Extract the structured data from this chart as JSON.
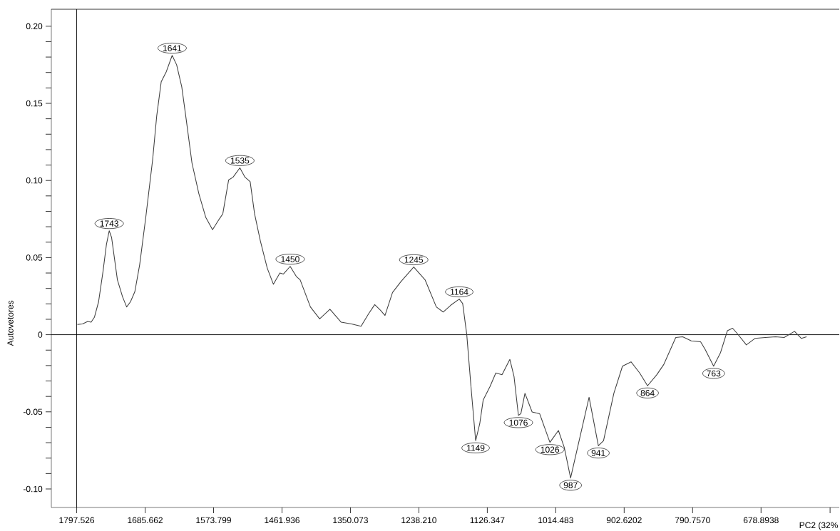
{
  "chart_data": {
    "type": "line",
    "xlabel": "PC2 (32%",
    "ylabel": "Autovetores",
    "xlim": [
      1839,
      551
    ],
    "ylim": [
      -0.112,
      0.211
    ],
    "xticks": [
      1797.526,
      1685.662,
      1573.799,
      1461.936,
      1350.073,
      {
        "value": 1238.21,
        "label": "1238.210"
      },
      1126.347,
      1014.483,
      902.6202,
      {
        "value": 790.757,
        "label": "790.7570"
      },
      678.8938,
      {
        "value": 566.03,
        "label": null
      }
    ],
    "yticks": [
      {
        "value": 0.2,
        "label": "0.20"
      },
      0.15,
      {
        "value": 0.1,
        "label": "0.10"
      },
      0.05,
      0,
      -0.05,
      {
        "value": -0.1,
        "label": "-0.10"
      }
    ],
    "ref_lines": [
      {
        "axis": "y",
        "value": 0,
        "color": "#000000"
      },
      {
        "axis": "x",
        "value": 1797.526,
        "color": "#000000"
      }
    ],
    "series": [
      {
        "color": "#404040",
        "x": [
          1796.4,
          1788,
          1779.6,
          1774,
          1768.5,
          1761.8,
          1754.5,
          1748.9,
          1744.4,
          1740.5,
          1731,
          1722.6,
          1715.9,
          1709.7,
          1702.5,
          1694.6,
          1684.6,
          1673.4,
          1666.7,
          1659.4,
          1651,
          1641.5,
          1634.2,
          1625.8,
          1618.6,
          1609.1,
          1597.9,
          1586.7,
          1575.5,
          1564.3,
          1558.7,
          1549.2,
          1542,
          1530.8,
          1522.4,
          1514,
          1506.8,
          1497.3,
          1486.1,
          1476,
          1465.4,
          1459.8,
          1448.6,
          1438.6,
          1432.3,
          1415.5,
          1400.4,
          1383.6,
          1365.2,
          1348.4,
          1332.7,
          1320.4,
          1310.4,
          1300.9,
          1293.6,
          1281.3,
          1267.3,
          1246.6,
          1228.1,
          1209.7,
          1198.5,
          1186.2,
          1172.2,
          1166.6,
          1159.9,
          1152.6,
          1145.4,
          1138.7,
          1133.1,
          1121.9,
          1112.4,
          1102.3,
          1089.5,
          1082.7,
          1075.5,
          1071.5,
          1064.8,
          1053.1,
          1040.8,
          1024,
          1010.1,
          1000.5,
          990.2,
          960,
          944.8,
          936.4,
          919.5,
          905.4,
          891.4,
          877.3,
          864.4,
          849.2,
          837.9,
          818.3,
          807,
          792.9,
          777.7,
          770.4,
          756.4,
          745.1,
          733.9,
          725.4,
          717,
          702.9,
          688.9,
          672,
          655.1,
          641.1,
          624.2,
          612.9,
          604.5
        ],
        "values": [
          0.0066,
          0.007,
          0.0086,
          0.0081,
          0.0114,
          0.0213,
          0.0411,
          0.0586,
          0.0674,
          0.063,
          0.0356,
          0.0246,
          0.018,
          0.0213,
          0.0279,
          0.0454,
          0.0762,
          0.1135,
          0.142,
          0.164,
          0.1706,
          0.1811,
          0.175,
          0.1607,
          0.1398,
          0.1113,
          0.0915,
          0.0762,
          0.0681,
          0.0751,
          0.0784,
          0.1003,
          0.1021,
          0.1082,
          0.1021,
          0.0992,
          0.0784,
          0.0608,
          0.0432,
          0.0327,
          0.04,
          0.0393,
          0.0443,
          0.0378,
          0.0356,
          0.018,
          0.0103,
          0.0165,
          0.0081,
          0.007,
          0.0055,
          0.0136,
          0.0195,
          0.0158,
          0.0125,
          0.0274,
          0.0345,
          0.0439,
          0.0356,
          0.018,
          0.0147,
          0.0191,
          0.0231,
          0.0202,
          0.0,
          -0.0358,
          -0.0687,
          -0.0577,
          -0.0424,
          -0.0336,
          -0.0248,
          -0.0259,
          -0.016,
          -0.027,
          -0.0523,
          -0.0512,
          -0.038,
          -0.0501,
          -0.0512,
          -0.0698,
          -0.0621,
          -0.0731,
          -0.0929,
          -0.0406,
          -0.072,
          -0.0687,
          -0.038,
          -0.0204,
          -0.0176,
          -0.0248,
          -0.0331,
          -0.0259,
          -0.0193,
          -0.0018,
          -0.0013,
          -0.004,
          -0.0046,
          -0.0094,
          -0.0204,
          -0.0116,
          0.0026,
          0.0042,
          0.0004,
          -0.0066,
          -0.0024,
          -0.0018,
          -0.0013,
          -0.0018,
          0.0022,
          -0.0024,
          -0.0013
        ]
      }
    ],
    "annotations": [
      {
        "text": "1743",
        "x": 1744.4,
        "y": 0.0674
      },
      {
        "text": "1641",
        "x": 1641.5,
        "y": 0.1811
      },
      {
        "text": "1535",
        "x": 1530.8,
        "y": 0.1082
      },
      {
        "text": "1450",
        "x": 1448.6,
        "y": 0.0443
      },
      {
        "text": "1245",
        "x": 1246.6,
        "y": 0.0439
      },
      {
        "text": "1164",
        "x": 1172.2,
        "y": 0.0231
      },
      {
        "text": "1149",
        "x": 1145.4,
        "y": -0.0687
      },
      {
        "text": "1076",
        "x": 1075.5,
        "y": -0.0523
      },
      {
        "text": "1026",
        "x": 1024,
        "y": -0.0698
      },
      {
        "text": "987",
        "x": 990.2,
        "y": -0.0929
      },
      {
        "text": "941",
        "x": 944.8,
        "y": -0.072
      },
      {
        "text": "864",
        "x": 864.4,
        "y": -0.0331
      },
      {
        "text": "763",
        "x": 756.4,
        "y": -0.0204
      }
    ]
  }
}
